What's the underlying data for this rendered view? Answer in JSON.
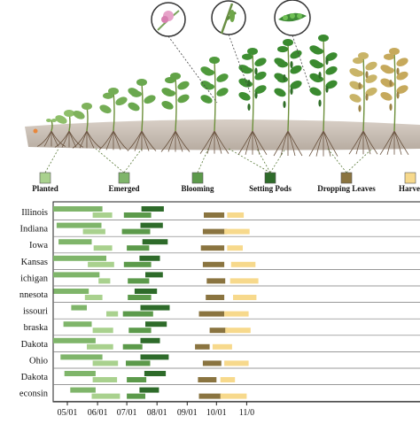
{
  "chart_data": {
    "type": "bar",
    "title": "",
    "xlabel": "",
    "ylabel": "",
    "x_axis": {
      "ticks": [
        "05/01",
        "06/01",
        "07/01",
        "08/01",
        "09/01",
        "10/01",
        "11/0"
      ],
      "tick_days": [
        0,
        31,
        61,
        92,
        123,
        153,
        184
      ],
      "grid": false
    },
    "stages": [
      {
        "name": "Planted",
        "color": "#a9d18e"
      },
      {
        "name": "Emerged",
        "color": "#7fb56a"
      },
      {
        "name": "Blooming",
        "color": "#5c9a4b"
      },
      {
        "name": "Setting Pods",
        "color": "#2e6b2a"
      },
      {
        "name": "Dropping Leaves",
        "color": "#8a7440"
      },
      {
        "name": "Harve",
        "color": "#f7d98c"
      }
    ],
    "states": [
      "Illinois",
      "Indiana",
      "Iowa",
      "Kansas",
      "ichigan",
      "nnesota",
      "issouri",
      "braska",
      "Dakota",
      "Ohio",
      "Dakota",
      "econsin"
    ],
    "rows": [
      [
        [
          26,
          46
        ],
        [
          -18,
          36
        ],
        [
          58,
          86
        ],
        [
          76,
          99
        ],
        [
          140,
          161
        ],
        [
          164,
          181
        ]
      ],
      [
        [
          16,
          39
        ],
        [
          -11,
          35
        ],
        [
          56,
          85
        ],
        [
          75,
          98
        ],
        [
          139,
          164
        ],
        [
          161,
          187
        ]
      ],
      [
        [
          27,
          46
        ],
        [
          -9,
          25
        ],
        [
          61,
          84
        ],
        [
          77,
          103
        ],
        [
          137,
          161
        ],
        [
          164,
          180
        ]
      ],
      [
        [
          21,
          48
        ],
        [
          -15,
          40
        ],
        [
          58,
          86
        ],
        [
          74,
          95
        ],
        [
          139,
          161
        ],
        [
          168,
          193
        ]
      ],
      [
        [
          32,
          44
        ],
        [
          -17,
          33
        ],
        [
          62,
          84
        ],
        [
          80,
          98
        ],
        [
          143,
          162
        ],
        [
          167,
          196
        ]
      ],
      [
        [
          18,
          36
        ],
        [
          -14,
          22
        ],
        [
          62,
          86
        ],
        [
          69,
          92
        ],
        [
          142,
          161
        ],
        [
          170,
          194
        ]
      ],
      [
        [
          40,
          52
        ],
        [
          4,
          20
        ],
        [
          57,
          88
        ],
        [
          75,
          105
        ],
        [
          135,
          161
        ],
        [
          161,
          186
        ]
      ],
      [
        [
          26,
          47
        ],
        [
          -4,
          25
        ],
        [
          63,
          86
        ],
        [
          80,
          102
        ],
        [
          146,
          164
        ],
        [
          162,
          188
        ]
      ],
      [
        [
          20,
          47
        ],
        [
          -16,
          29
        ],
        [
          57,
          77
        ],
        [
          75,
          95
        ],
        [
          131,
          146
        ],
        [
          149,
          169
        ]
      ],
      [
        [
          26,
          52
        ],
        [
          -7,
          36
        ],
        [
          60,
          85
        ],
        [
          75,
          104
        ],
        [
          139,
          158
        ],
        [
          161,
          186
        ]
      ],
      [
        [
          26,
          51
        ],
        [
          -3,
          29
        ],
        [
          61,
          81
        ],
        [
          79,
          101
        ],
        [
          134,
          153
        ],
        [
          157,
          172
        ]
      ],
      [
        [
          25,
          54
        ],
        [
          3,
          29
        ],
        [
          61,
          80
        ],
        [
          74,
          94
        ],
        [
          135,
          158
        ],
        [
          157,
          184
        ]
      ]
    ]
  },
  "legend": [
    {
      "label": "Planted"
    },
    {
      "label": "Emerged"
    },
    {
      "label": "Blooming"
    },
    {
      "label": "Setting Pods"
    },
    {
      "label": "Dropping Leaves"
    },
    {
      "label": "Harve"
    }
  ]
}
